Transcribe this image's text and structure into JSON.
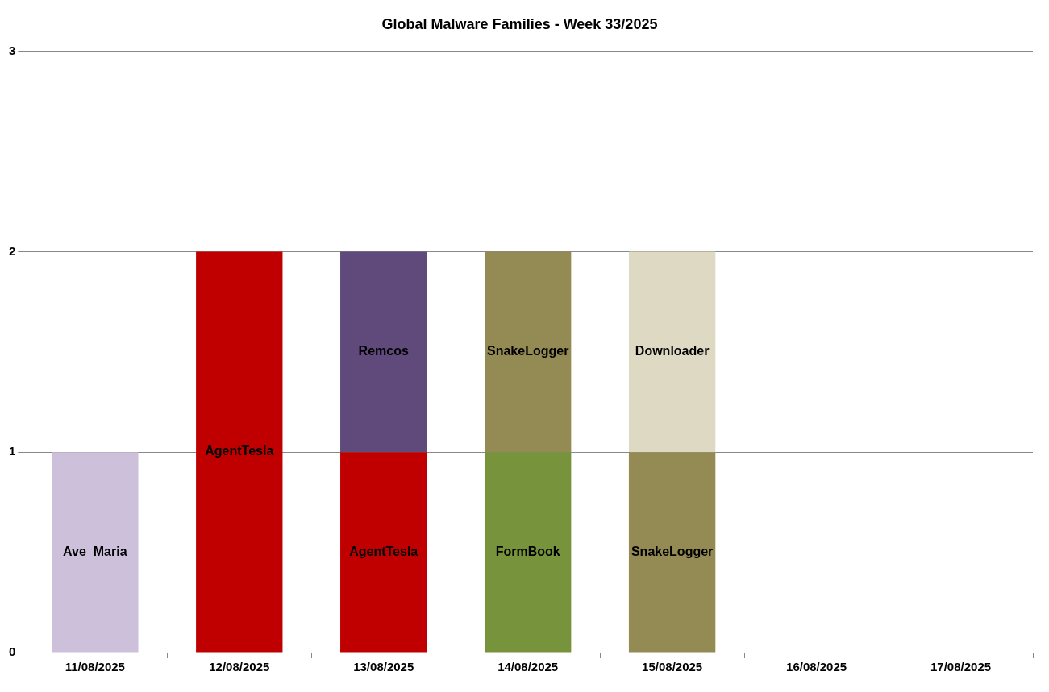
{
  "chart_data": {
    "type": "bar",
    "title": "Global Malware Families - Week 33/2025",
    "stacked": true,
    "grid": "y",
    "legend": false,
    "categories": [
      "11/08/2025",
      "12/08/2025",
      "13/08/2025",
      "14/08/2025",
      "15/08/2025",
      "16/08/2025",
      "17/08/2025"
    ],
    "ylim": [
      0,
      3
    ],
    "yticks": [
      0,
      1,
      2,
      3
    ],
    "series": [
      {
        "colors": [
          "#ccc0da",
          "#c00000",
          "#c00000",
          "#77933c",
          "#948a54",
          "#ffffff",
          "#ffffff"
        ],
        "values": [
          1,
          2,
          1,
          1,
          1,
          null,
          null
        ],
        "value_labels": [
          "Ave_Maria",
          "AgentTesla",
          "AgentTesla",
          "FormBook",
          "SnakeLogger",
          null,
          null
        ]
      },
      {
        "colors": [
          "#ffffff",
          "#ffffff",
          "#604a7b",
          "#948a54",
          "#ddd9c3",
          "#ffffff",
          "#ffffff"
        ],
        "values": [
          null,
          null,
          1,
          1,
          1,
          null,
          null
        ],
        "value_labels": [
          null,
          null,
          "Remcos",
          "SnakeLogger",
          "Downloader",
          null,
          null
        ]
      }
    ]
  }
}
